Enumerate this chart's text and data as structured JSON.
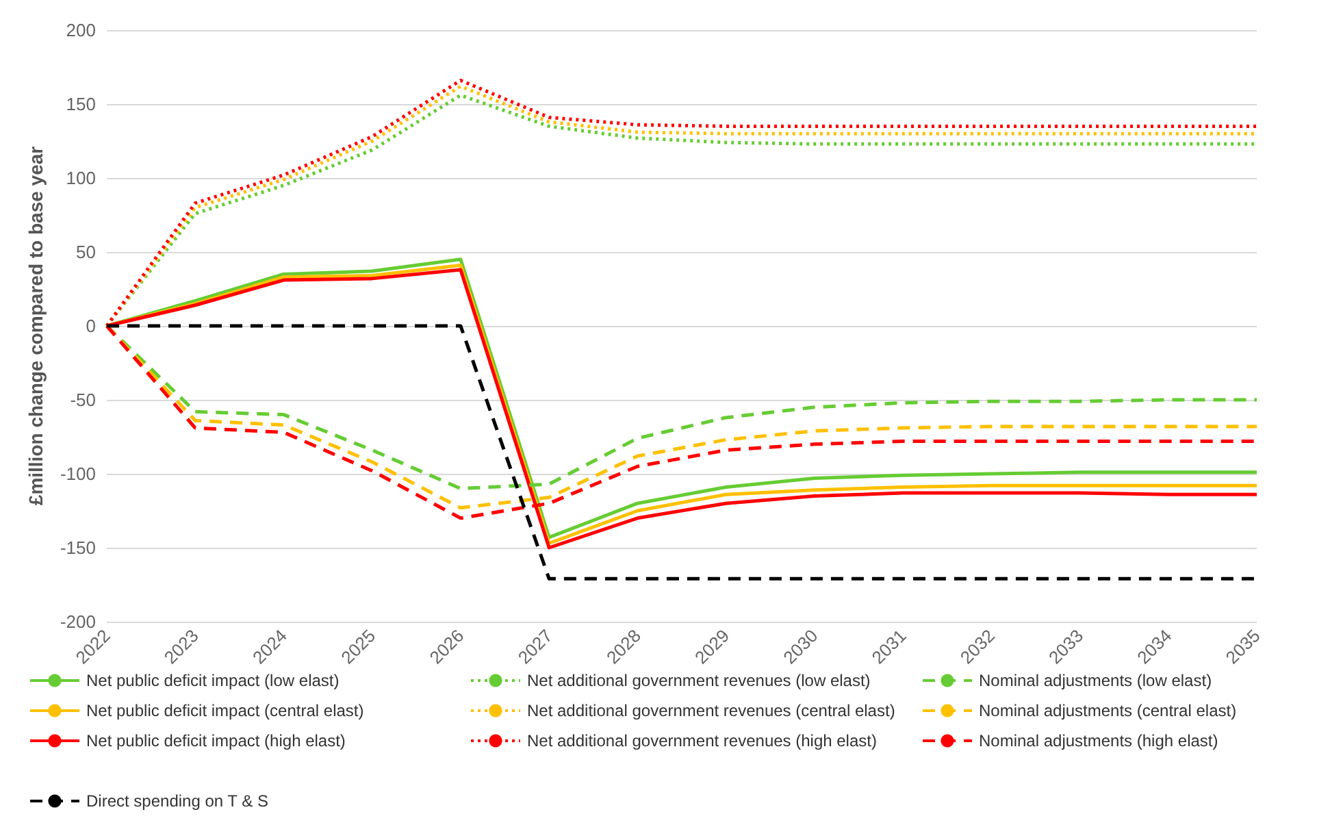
{
  "chart_data": {
    "type": "line",
    "ylabel": "£million change compared to base year",
    "categories": [
      "2022",
      "2023",
      "2024",
      "2025",
      "2026",
      "2027",
      "2028",
      "2029",
      "2030",
      "2031",
      "2032",
      "2033",
      "2034",
      "2035"
    ],
    "ylim": [
      -200,
      200
    ],
    "yticks": [
      -200,
      -150,
      -100,
      -50,
      0,
      50,
      100,
      150,
      200
    ],
    "grid": "y",
    "legend": "bottom",
    "marker": "none",
    "series": [
      {
        "name": "Net public deficit impact (low elast)",
        "color": "#66cc33",
        "line_style": "solid",
        "values": [
          0,
          17,
          35,
          37,
          45,
          -143,
          -120,
          -109,
          -103,
          -101,
          -100,
          -99,
          -99,
          -99
        ]
      },
      {
        "name": "Net public deficit impact (central elast)",
        "color": "#ffc000",
        "line_style": "solid",
        "values": [
          0,
          15,
          33,
          34,
          41,
          -147,
          -125,
          -114,
          -111,
          -109,
          -108,
          -108,
          -108,
          -108
        ]
      },
      {
        "name": "Net public deficit impact (high elast)",
        "color": "#ff0000",
        "line_style": "solid",
        "values": [
          0,
          14,
          31,
          32,
          38,
          -150,
          -130,
          -120,
          -115,
          -113,
          -113,
          -113,
          -114,
          -114
        ]
      },
      {
        "name": "Net additional government revenues (low elast)",
        "color": "#66cc33",
        "line_style": "dotted",
        "values": [
          0,
          76,
          95,
          119,
          156,
          135,
          127,
          124,
          123,
          123,
          123,
          123,
          123,
          123
        ]
      },
      {
        "name": "Net additional government revenues (central elast)",
        "color": "#ffc000",
        "line_style": "dotted",
        "values": [
          0,
          80,
          99,
          125,
          162,
          138,
          131,
          130,
          130,
          130,
          130,
          130,
          130,
          130
        ]
      },
      {
        "name": "Net additional government revenues (high elast)",
        "color": "#ff0000",
        "line_style": "dotted",
        "values": [
          0,
          83,
          102,
          128,
          166,
          141,
          136,
          135,
          135,
          135,
          135,
          135,
          135,
          135
        ]
      },
      {
        "name": "Nominal adjustments (low elast)",
        "color": "#66cc33",
        "line_style": "dashed",
        "values": [
          0,
          -58,
          -60,
          -84,
          -110,
          -107,
          -76,
          -62,
          -55,
          -52,
          -51,
          -51,
          -50,
          -50
        ]
      },
      {
        "name": "Nominal adjustments (central elast)",
        "color": "#ffc000",
        "line_style": "dashed",
        "values": [
          0,
          -64,
          -67,
          -92,
          -123,
          -116,
          -88,
          -77,
          -71,
          -69,
          -68,
          -68,
          -68,
          -68
        ]
      },
      {
        "name": "Nominal adjustments (high elast)",
        "color": "#ff0000",
        "line_style": "dashed",
        "values": [
          0,
          -69,
          -72,
          -98,
          -130,
          -120,
          -95,
          -84,
          -80,
          -78,
          -78,
          -78,
          -78,
          -78
        ]
      },
      {
        "name": "Direct spending on T & S",
        "color": "#000000",
        "line_style": "dashed",
        "values": [
          0,
          0,
          0,
          0,
          0,
          -171,
          -171,
          -171,
          -171,
          -171,
          -171,
          -171,
          -171,
          -171
        ]
      }
    ]
  }
}
